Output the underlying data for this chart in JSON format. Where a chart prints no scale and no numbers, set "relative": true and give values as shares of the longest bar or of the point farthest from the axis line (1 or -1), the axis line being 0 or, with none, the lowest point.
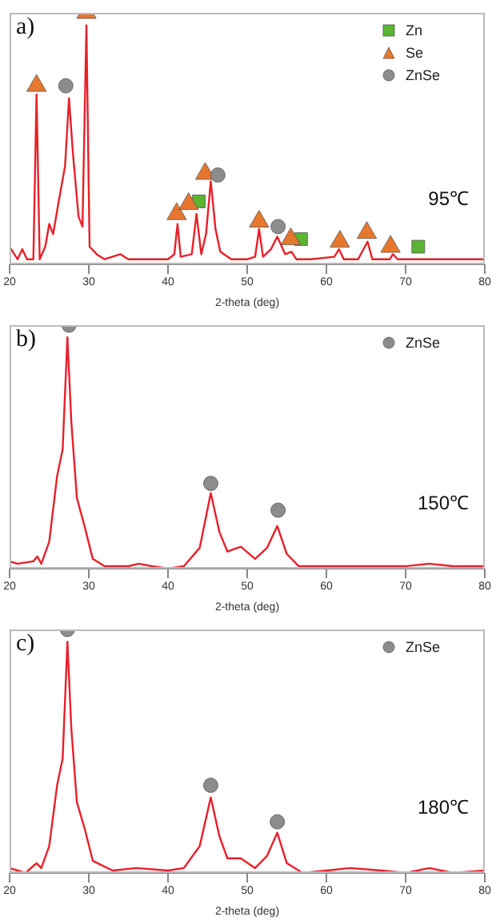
{
  "chart_data": [
    {
      "type": "line",
      "relative": true,
      "xlabel": "2-theta (deg)",
      "xlim": [
        20,
        80
      ],
      "xticks": [
        20,
        30,
        40,
        50,
        60,
        70,
        80
      ],
      "legend": "top right",
      "annotations": [
        "a)",
        "95℃"
      ],
      "series": [
        {
          "type": "line",
          "color": "#e8202a",
          "marker": "none",
          "x": [
            20,
            21,
            21.6,
            22.2,
            23,
            23.4,
            23.8,
            24.5,
            25,
            25.5,
            26.2,
            27,
            27.5,
            28,
            28.7,
            29.2,
            29.7,
            30.1,
            31,
            32,
            34,
            35,
            38,
            40,
            40.8,
            41.2,
            41.6,
            43,
            43.6,
            44.2,
            44.8,
            45.4,
            46,
            46.6,
            48,
            50,
            51,
            51.5,
            52,
            53,
            53.8,
            54.8,
            55.6,
            56.2,
            58,
            61,
            61.6,
            62.2,
            64,
            65.2,
            65.8,
            68,
            68.4,
            69,
            75,
            78,
            80
          ],
          "values": [
            0.07,
            0.02,
            0.06,
            0.02,
            0.02,
            0.675,
            0.02,
            0.07,
            0.16,
            0.12,
            0.25,
            0.39,
            0.66,
            0.44,
            0.19,
            0.15,
            0.95,
            0.07,
            0.04,
            0.02,
            0.04,
            0.02,
            0.02,
            0.02,
            0.04,
            0.16,
            0.03,
            0.04,
            0.2,
            0.04,
            0.12,
            0.33,
            0.14,
            0.05,
            0.02,
            0.02,
            0.03,
            0.14,
            0.03,
            0.06,
            0.11,
            0.04,
            0.05,
            0.02,
            0.02,
            0.03,
            0.06,
            0.02,
            0.02,
            0.09,
            0.02,
            0.02,
            0.04,
            0.02,
            0.02,
            0.02,
            0.02
          ]
        },
        {
          "type": "scatter",
          "name": "Zn",
          "color": "#5cb531",
          "marker": "square",
          "x": [
            43.9,
            56.8,
            71.6
          ],
          "values": [
            0.25,
            0.1,
            0.07
          ]
        },
        {
          "type": "scatter",
          "name": "Se",
          "color": "#e8772e",
          "marker": "triangle",
          "x": [
            23.4,
            29.7,
            41.1,
            42.6,
            44.7,
            51.5,
            55.5,
            61.7,
            65.1,
            68.1
          ],
          "values": [
            0.71,
            1,
            0.2,
            0.24,
            0.36,
            0.17,
            0.1,
            0.09,
            0.125,
            0.07
          ]
        },
        {
          "type": "scatter",
          "name": "ZnSe",
          "color": "#8c8c8c",
          "marker": "circle",
          "x": [
            27.1,
            46.3,
            53.9
          ],
          "values": [
            0.71,
            0.355,
            0.15
          ]
        }
      ]
    },
    {
      "type": "line",
      "relative": true,
      "xlabel": "2-theta (deg)",
      "xlim": [
        20,
        80
      ],
      "xticks": [
        20,
        30,
        40,
        50,
        60,
        70,
        80
      ],
      "legend": "top right",
      "annotations": [
        "b)",
        "150℃"
      ],
      "series": [
        {
          "type": "line",
          "color": "#e8202a",
          "marker": "none",
          "x": [
            20,
            21,
            23,
            23.5,
            24,
            25,
            26,
            26.7,
            27.3,
            27.8,
            28.5,
            29.5,
            30.5,
            32,
            35,
            36.3,
            38,
            40,
            42,
            44,
            45.4,
            46.5,
            47.5,
            49.2,
            51,
            52.5,
            53.8,
            55,
            56.5,
            60,
            65,
            70,
            73,
            76,
            80
          ],
          "values": [
            0.03,
            0.02,
            0.03,
            0.05,
            0.02,
            0.11,
            0.38,
            0.49,
            0.95,
            0.6,
            0.29,
            0.17,
            0.04,
            0.01,
            0.01,
            0.02,
            0.01,
            0,
            0.01,
            0.085,
            0.31,
            0.15,
            0.07,
            0.09,
            0.04,
            0.085,
            0.175,
            0.06,
            0.01,
            0.01,
            0.01,
            0.01,
            0.02,
            0.01,
            0.01
          ]
        },
        {
          "type": "scatter",
          "name": "ZnSe",
          "color": "#8c8c8c",
          "marker": "circle",
          "x": [
            27.5,
            45.4,
            53.9
          ],
          "values": [
            1,
            0.35,
            0.24
          ]
        }
      ]
    },
    {
      "type": "line",
      "relative": true,
      "xlabel": "2-theta (deg)",
      "xlim": [
        20,
        80
      ],
      "xticks": [
        20,
        30,
        40,
        50,
        60,
        70,
        80
      ],
      "legend": "top right",
      "annotations": [
        "c)",
        "180℃"
      ],
      "series": [
        {
          "type": "line",
          "color": "#e8202a",
          "marker": "none",
          "x": [
            20,
            22,
            23.4,
            24,
            25,
            26,
            26.7,
            27.3,
            27.8,
            28.5,
            29.5,
            30.5,
            33,
            36,
            40,
            42,
            44,
            45.4,
            46.5,
            47.5,
            49.2,
            51,
            52.5,
            53.8,
            55,
            57,
            60,
            63,
            67,
            70,
            73,
            76,
            80
          ],
          "values": [
            0.02,
            0,
            0.04,
            0.02,
            0.11,
            0.36,
            0.47,
            0.95,
            0.59,
            0.29,
            0.18,
            0.05,
            0.01,
            0.02,
            0.01,
            0.02,
            0.11,
            0.31,
            0.15,
            0.06,
            0.06,
            0.02,
            0.07,
            0.165,
            0.04,
            0,
            0.01,
            0.02,
            0.01,
            0,
            0.02,
            0,
            0.01
          ]
        },
        {
          "type": "scatter",
          "name": "ZnSe",
          "color": "#8c8c8c",
          "marker": "circle",
          "x": [
            27.3,
            45.4,
            53.8
          ],
          "values": [
            1,
            0.36,
            0.21
          ]
        }
      ]
    }
  ]
}
